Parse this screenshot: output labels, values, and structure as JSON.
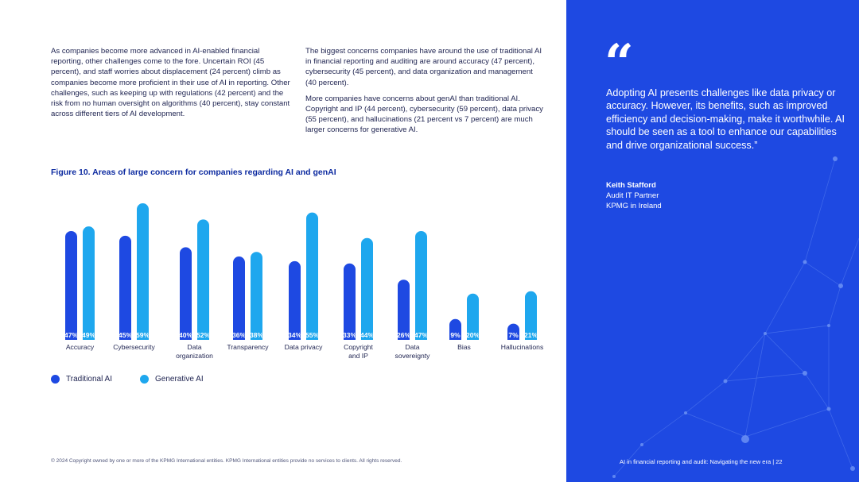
{
  "body": {
    "col1_p1": "As companies become more advanced in AI-enabled financial reporting, other challenges come to the fore. Uncertain ROI (45 percent), and staff worries about displacement (24 percent) climb as companies become more proficient in their use of AI in reporting. Other challenges, such as keeping up with regulations (42 percent) and the risk from no human oversight on algorithms (40 percent), stay constant across different tiers of AI development.",
    "col2_p1": "The biggest concerns companies have around the use of traditional AI in financial reporting and auditing are around accuracy (47 percent), cybersecurity (45 percent), and data organization and management (40 percent).",
    "col2_p2": "More companies have concerns about genAI than traditional AI. Copyright and IP (44 percent), cybersecurity (59 percent), data privacy (55 percent), and hallucinations (21 percent vs 7 percent) are much larger concerns for generative AI."
  },
  "figure": {
    "title": "Figure 10. Areas of large concern for companies regarding AI and genAI"
  },
  "chart_data": {
    "type": "bar",
    "title": "Figure 10. Areas of large concern for companies regarding AI and genAI",
    "categories": [
      "Accuracy",
      "Cybersecurity",
      "Data organization",
      "Transparency",
      "Data privacy",
      "Copyright and IP",
      "Data sovereignty",
      "Bias",
      "Hallucinations"
    ],
    "category_lines": [
      [
        "Accuracy"
      ],
      [
        "Cybersecurity"
      ],
      [
        "Data",
        "organization"
      ],
      [
        "Transparency"
      ],
      [
        "Data privacy"
      ],
      [
        "Copyright",
        "and IP"
      ],
      [
        "Data",
        "sovereignty"
      ],
      [
        "Bias"
      ],
      [
        "Hallucinations"
      ]
    ],
    "series": [
      {
        "name": "Traditional AI",
        "color": "#1e49e2",
        "values": [
          47,
          45,
          40,
          36,
          34,
          33,
          26,
          9,
          7
        ]
      },
      {
        "name": "Generative AI",
        "color": "#1ea7ee",
        "values": [
          49,
          59,
          52,
          38,
          55,
          44,
          47,
          20,
          21
        ]
      }
    ],
    "value_suffix": "%",
    "legend_position": "bottom-left",
    "grid": false
  },
  "quote": {
    "mark": "“",
    "text": "Adopting AI presents challenges like data privacy or accuracy. However, its benefits, such as improved efficiency and decision-making, make it worthwhile. AI should be seen as a tool to enhance our capabilities and drive organizational success.”",
    "name": "Keith Stafford",
    "role": "Audit IT Partner",
    "org": "KPMG in Ireland"
  },
  "footer": {
    "left": "© 2024 Copyright owned by one or more of the KPMG International entities. KPMG International entities provide no services to clients. All rights reserved.",
    "right": "AI in financial reporting and audit: Navigating the new era  |  22"
  },
  "colors": {
    "panel": "#1e49e2",
    "traditional": "#1e49e2",
    "generative": "#1ea7ee",
    "title": "#0c2aa0"
  }
}
